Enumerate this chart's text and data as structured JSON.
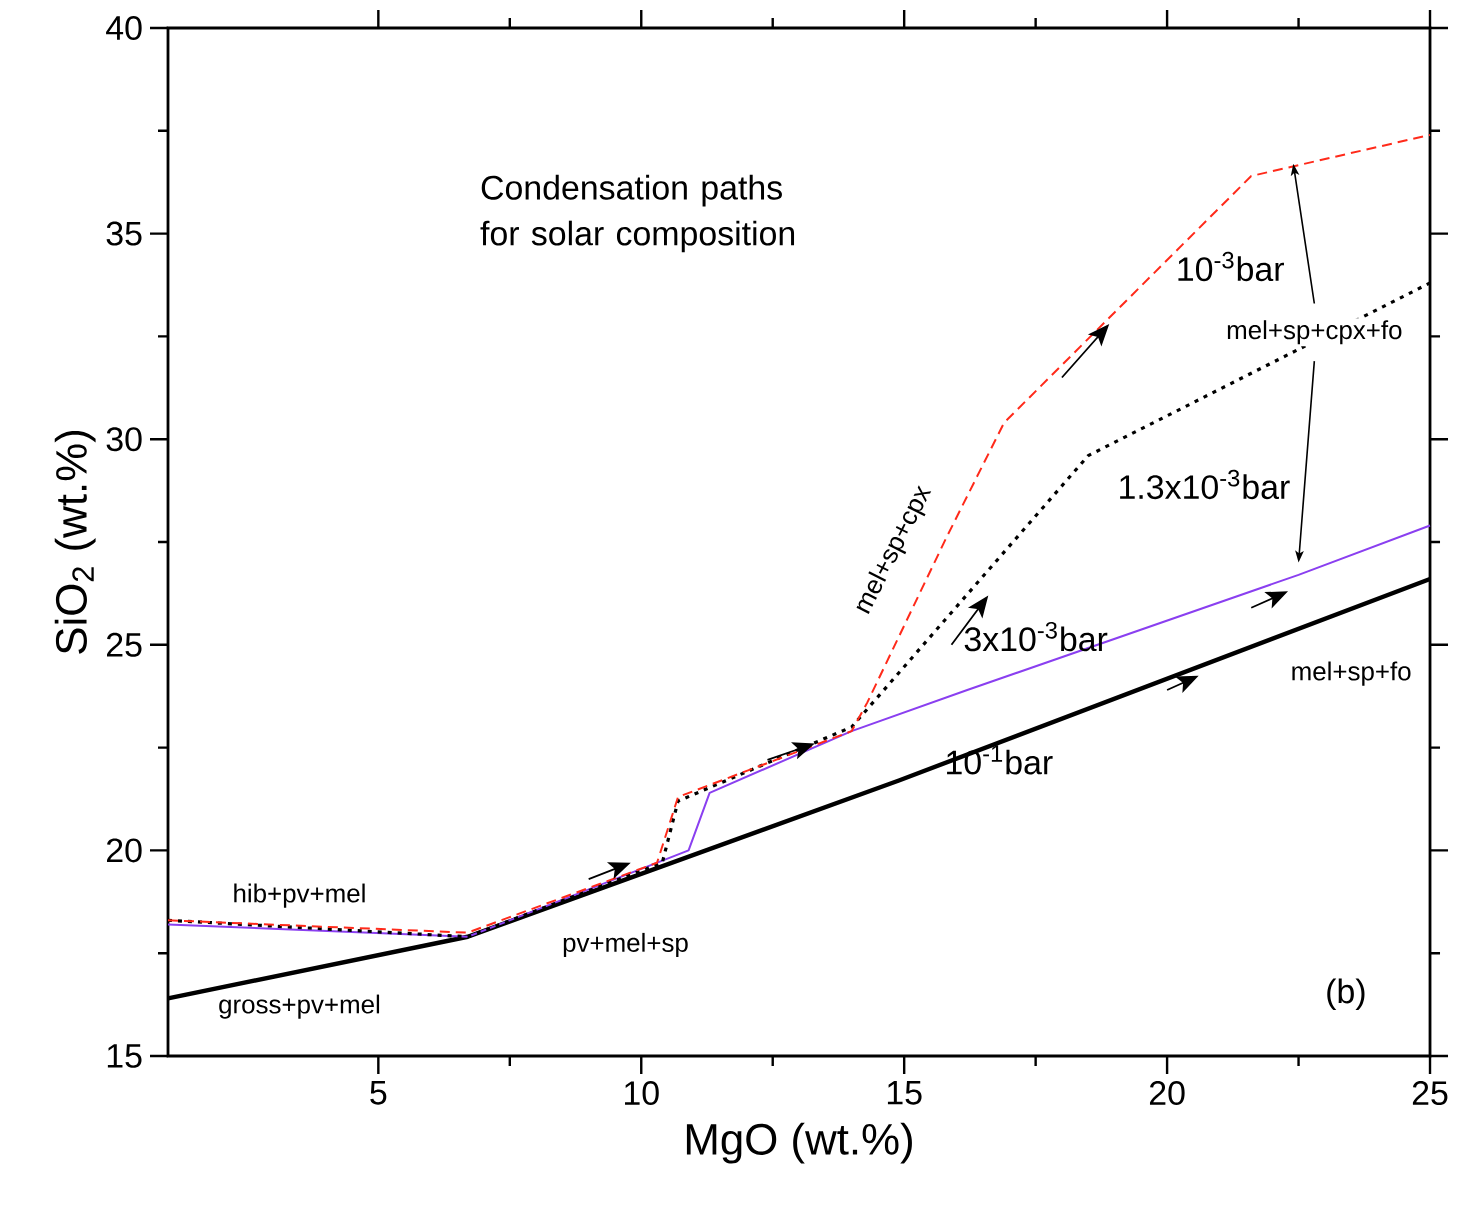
{
  "chart_data": {
    "type": "line",
    "title": "Condensation paths for solar composition",
    "xlabel": "MgO (wt.%)",
    "ylabel": "SiO$_{2}$ (wt.%)",
    "xlim": [
      1,
      25
    ],
    "ylim": [
      15,
      40
    ],
    "xticks": [
      5,
      10,
      15,
      20,
      25
    ],
    "yticks": [
      15,
      20,
      25,
      30,
      35,
      40
    ],
    "grid": false,
    "marker": "none",
    "series": [
      {
        "color": "#000000",
        "line_style": "solid",
        "x": [
          1,
          6.7,
          14.9,
          25
        ],
        "values": [
          16.4,
          17.9,
          21.7,
          26.6
        ]
      },
      {
        "color": "#8a3ff0",
        "line_style": "solid",
        "x": [
          1,
          6.7,
          10.9,
          11.3,
          14,
          16.2,
          22.5,
          25
        ],
        "values": [
          18.2,
          17.9,
          20.0,
          21.4,
          22.9,
          23.9,
          26.7,
          27.9
        ]
      },
      {
        "color": "#000000",
        "line_style": "dotted",
        "x": [
          1,
          6.7,
          10.4,
          10.7,
          14,
          18.5,
          25
        ],
        "values": [
          18.3,
          17.9,
          19.7,
          21.2,
          23.0,
          29.6,
          33.8
        ]
      },
      {
        "color": "#ff2a1a",
        "line_style": "dashed",
        "x": [
          1,
          6.7,
          10.3,
          10.7,
          14,
          14.3,
          15.8,
          16.9,
          21.6,
          25
        ],
        "values": [
          18.3,
          18.0,
          19.7,
          21.3,
          22.9,
          23.6,
          27.6,
          30.4,
          36.4,
          37.4
        ]
      }
    ],
    "annotations": [
      "10$^{-3}$bar",
      "mel+sp+cpx+fo",
      "1.3x10$^{-3}$bar",
      "3x10$^{-3}$bar",
      "mel+sp+fo",
      "10$^{-1}$bar",
      "mel+sp+cpx",
      "hib+pv+mel",
      "pv+mel+sp",
      "gross+pv+mel",
      "(b)"
    ]
  }
}
